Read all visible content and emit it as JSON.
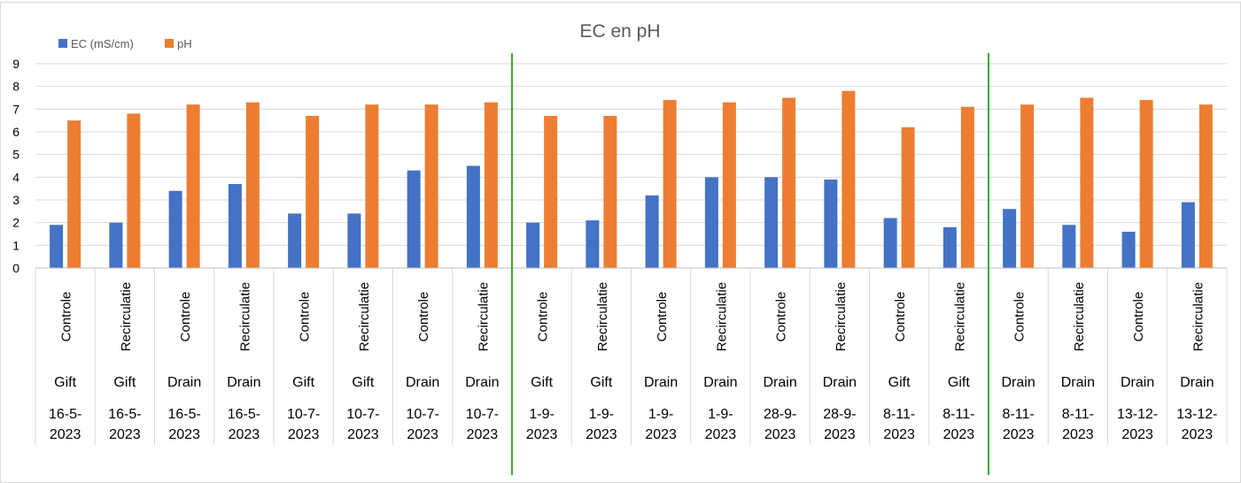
{
  "chart_data": {
    "type": "bar",
    "title": "EC en pH",
    "xlabel": "",
    "ylabel": "",
    "ylim": [
      0,
      9
    ],
    "yticks": [
      0,
      1,
      2,
      3,
      4,
      5,
      6,
      7,
      8,
      9
    ],
    "grid": true,
    "legend_position": "top-left",
    "categories": [
      {
        "treatment": "Controle",
        "type": "Gift",
        "date_top": "16-5-",
        "date_bottom": "2023"
      },
      {
        "treatment": "Recirculatie",
        "type": "Gift",
        "date_top": "16-5-",
        "date_bottom": "2023"
      },
      {
        "treatment": "Controle",
        "type": "Drain",
        "date_top": "16-5-",
        "date_bottom": "2023"
      },
      {
        "treatment": "Recirculatie",
        "type": "Drain",
        "date_top": "16-5-",
        "date_bottom": "2023"
      },
      {
        "treatment": "Controle",
        "type": "Gift",
        "date_top": "10-7-",
        "date_bottom": "2023"
      },
      {
        "treatment": "Recirculatie",
        "type": "Gift",
        "date_top": "10-7-",
        "date_bottom": "2023"
      },
      {
        "treatment": "Controle",
        "type": "Drain",
        "date_top": "10-7-",
        "date_bottom": "2023"
      },
      {
        "treatment": "Recirculatie",
        "type": "Drain",
        "date_top": "10-7-",
        "date_bottom": "2023"
      },
      {
        "treatment": "Controle",
        "type": "Gift",
        "date_top": "1-9-",
        "date_bottom": "2023"
      },
      {
        "treatment": "Recirculatie",
        "type": "Gift",
        "date_top": "1-9-",
        "date_bottom": "2023"
      },
      {
        "treatment": "Controle",
        "type": "Drain",
        "date_top": "1-9-",
        "date_bottom": "2023"
      },
      {
        "treatment": "Recirculatie",
        "type": "Drain",
        "date_top": "1-9-",
        "date_bottom": "2023"
      },
      {
        "treatment": "Controle",
        "type": "Drain",
        "date_top": "28-9-",
        "date_bottom": "2023"
      },
      {
        "treatment": "Recirculatie",
        "type": "Drain",
        "date_top": "28-9-",
        "date_bottom": "2023"
      },
      {
        "treatment": "Controle",
        "type": "Gift",
        "date_top": "8-11-",
        "date_bottom": "2023"
      },
      {
        "treatment": "Recirculatie",
        "type": "Gift",
        "date_top": "8-11-",
        "date_bottom": "2023"
      },
      {
        "treatment": "Controle",
        "type": "Drain",
        "date_top": "8-11-",
        "date_bottom": "2023"
      },
      {
        "treatment": "Recirculatie",
        "type": "Drain",
        "date_top": "8-11-",
        "date_bottom": "2023"
      },
      {
        "treatment": "Controle",
        "type": "Drain",
        "date_top": "13-12-",
        "date_bottom": "2023"
      },
      {
        "treatment": "Recirculatie",
        "type": "Drain",
        "date_top": "13-12-",
        "date_bottom": "2023"
      }
    ],
    "series": [
      {
        "name": "EC (mS/cm)",
        "color": "#4472c4",
        "values": [
          1.9,
          2.0,
          3.4,
          3.7,
          2.4,
          2.4,
          4.3,
          4.5,
          2.0,
          2.1,
          3.2,
          4.0,
          4.0,
          3.9,
          2.2,
          1.8,
          2.6,
          1.9,
          1.6,
          2.9
        ]
      },
      {
        "name": "pH",
        "color": "#ed7d31",
        "values": [
          6.5,
          6.8,
          7.2,
          7.3,
          6.7,
          7.2,
          7.2,
          7.3,
          6.7,
          6.7,
          7.4,
          7.3,
          7.5,
          7.8,
          6.2,
          7.1,
          7.2,
          7.5,
          7.4,
          7.2
        ]
      }
    ],
    "vertical_separators_after_index": [
      7,
      15
    ],
    "separator_color": "#3aaa35"
  }
}
